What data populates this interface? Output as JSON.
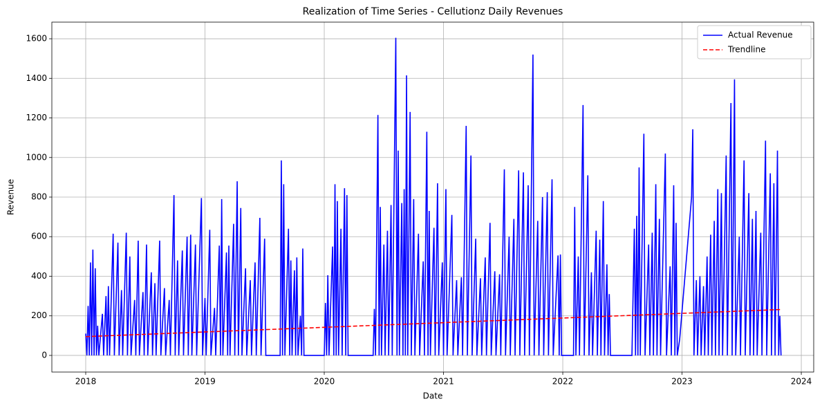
{
  "chart_data": {
    "type": "line",
    "title": "Realization of Time Series - Cellutionz Daily Revenues",
    "x_label": "Date",
    "y_label": "Revenue",
    "xlim": [
      2017.716,
      2024.104
    ],
    "xticks": [
      2018,
      2019,
      2020,
      2021,
      2022,
      2023,
      2024
    ],
    "ylim": [
      -84,
      1684
    ],
    "yticks": [
      0,
      200,
      400,
      600,
      800,
      1000,
      1200,
      1400,
      1600
    ],
    "grid": true,
    "legend": "upper right",
    "series": [
      {
        "name": "Actual Revenue",
        "color": "#0000ff",
        "linestyle": "solid",
        "x": [
          2018.0,
          2018.01,
          2018.02,
          2018.03,
          2018.04,
          2018.05,
          2018.06,
          2018.07,
          2018.08,
          2018.09,
          2018.1,
          2018.11,
          2018.14,
          2018.15,
          2018.17,
          2018.18,
          2018.19,
          2018.2,
          2018.23,
          2018.24,
          2018.27,
          2018.28,
          2018.3,
          2018.31,
          2018.34,
          2018.35,
          2018.37,
          2018.38,
          2018.41,
          2018.42,
          2018.44,
          2018.45,
          2018.48,
          2018.49,
          2018.51,
          2018.52,
          2018.55,
          2018.56,
          2018.58,
          2018.59,
          2018.62,
          2018.63,
          2018.66,
          2018.67,
          2018.7,
          2018.71,
          2018.74,
          2018.75,
          2018.77,
          2018.78,
          2018.81,
          2018.82,
          2018.85,
          2018.86,
          2018.88,
          2018.89,
          2018.92,
          2018.93,
          2018.97,
          2018.98,
          2019.0,
          2019.01,
          2019.04,
          2019.05,
          2019.08,
          2019.09,
          2019.12,
          2019.13,
          2019.14,
          2019.15,
          2019.18,
          2019.19,
          2019.2,
          2019.21,
          2019.24,
          2019.25,
          2019.27,
          2019.28,
          2019.3,
          2019.31,
          2019.34,
          2019.35,
          2019.38,
          2019.39,
          2019.42,
          2019.43,
          2019.46,
          2019.47,
          2019.5,
          2019.51,
          2019.63,
          2019.64,
          2019.65,
          2019.66,
          2019.67,
          2019.7,
          2019.71,
          2019.72,
          2019.73,
          2019.75,
          2019.76,
          2019.77,
          2019.78,
          2019.8,
          2019.81,
          2019.82,
          2019.83,
          2020.0,
          2020.01,
          2020.02,
          2020.03,
          2020.04,
          2020.07,
          2020.08,
          2020.09,
          2020.1,
          2020.11,
          2020.12,
          2020.14,
          2020.15,
          2020.17,
          2020.18,
          2020.19,
          2020.2,
          2020.41,
          2020.42,
          2020.43,
          2020.45,
          2020.46,
          2020.47,
          2020.48,
          2020.5,
          2020.51,
          2020.53,
          2020.54,
          2020.56,
          2020.57,
          2020.6,
          2020.61,
          2020.62,
          2020.63,
          2020.65,
          2020.66,
          2020.67,
          2020.68,
          2020.69,
          2020.7,
          2020.72,
          2020.73,
          2020.75,
          2020.76,
          2020.79,
          2020.8,
          2020.83,
          2020.84,
          2020.86,
          2020.87,
          2020.88,
          2020.89,
          2020.92,
          2020.93,
          2020.95,
          2020.96,
          2020.99,
          2021.0,
          2021.02,
          2021.03,
          2021.07,
          2021.08,
          2021.11,
          2021.12,
          2021.15,
          2021.16,
          2021.19,
          2021.2,
          2021.23,
          2021.24,
          2021.27,
          2021.28,
          2021.31,
          2021.32,
          2021.35,
          2021.36,
          2021.39,
          2021.4,
          2021.43,
          2021.44,
          2021.47,
          2021.48,
          2021.51,
          2021.52,
          2021.55,
          2021.56,
          2021.59,
          2021.6,
          2021.63,
          2021.64,
          2021.67,
          2021.68,
          2021.71,
          2021.72,
          2021.75,
          2021.76,
          2021.79,
          2021.8,
          2021.83,
          2021.84,
          2021.87,
          2021.88,
          2021.91,
          2021.92,
          2021.96,
          2021.97,
          2021.98,
          2021.99,
          2022.09,
          2022.1,
          2022.11,
          2022.13,
          2022.14,
          2022.17,
          2022.18,
          2022.21,
          2022.22,
          2022.24,
          2022.25,
          2022.28,
          2022.29,
          2022.31,
          2022.32,
          2022.34,
          2022.35,
          2022.37,
          2022.38,
          2022.39,
          2022.4,
          2022.58,
          2022.6,
          2022.61,
          2022.62,
          2022.63,
          2022.64,
          2022.65,
          2022.68,
          2022.69,
          2022.72,
          2022.73,
          2022.75,
          2022.76,
          2022.78,
          2022.79,
          2022.81,
          2022.82,
          2022.86,
          2022.87,
          2022.9,
          2022.91,
          2022.93,
          2022.94,
          2022.95,
          2022.96,
          2022.98,
          2023.08,
          2023.09,
          2023.1,
          2023.12,
          2023.13,
          2023.15,
          2023.16,
          2023.18,
          2023.19,
          2023.21,
          2023.22,
          2023.24,
          2023.25,
          2023.27,
          2023.28,
          2023.3,
          2023.31,
          2023.33,
          2023.34,
          2023.37,
          2023.38,
          2023.41,
          2023.42,
          2023.44,
          2023.45,
          2023.48,
          2023.49,
          2023.52,
          2023.53,
          2023.56,
          2023.57,
          2023.59,
          2023.6,
          2023.62,
          2023.63,
          2023.66,
          2023.67,
          2023.7,
          2023.71,
          2023.74,
          2023.75,
          2023.77,
          2023.78,
          2023.8,
          2023.81,
          2023.82,
          2023.83
        ],
        "values": [
          110,
          0,
          250,
          0,
          470,
          0,
          535,
          0,
          440,
          0,
          150,
          0,
          210,
          0,
          300,
          0,
          350,
          0,
          615,
          0,
          570,
          0,
          330,
          0,
          620,
          0,
          500,
          0,
          280,
          0,
          580,
          0,
          320,
          0,
          560,
          0,
          420,
          0,
          365,
          0,
          580,
          0,
          340,
          0,
          280,
          0,
          810,
          0,
          480,
          0,
          530,
          0,
          600,
          0,
          610,
          0,
          560,
          0,
          795,
          0,
          290,
          0,
          635,
          0,
          240,
          0,
          555,
          0,
          790,
          0,
          520,
          0,
          555,
          0,
          665,
          0,
          880,
          0,
          745,
          0,
          440,
          0,
          380,
          0,
          470,
          0,
          695,
          0,
          590,
          0,
          0,
          985,
          0,
          865,
          0,
          640,
          0,
          480,
          0,
          430,
          0,
          495,
          0,
          200,
          0,
          540,
          0,
          0,
          265,
          0,
          405,
          0,
          550,
          0,
          865,
          0,
          780,
          0,
          640,
          0,
          845,
          0,
          810,
          0,
          0,
          235,
          0,
          1215,
          0,
          750,
          0,
          560,
          0,
          630,
          0,
          760,
          0,
          1605,
          0,
          1035,
          0,
          770,
          0,
          840,
          0,
          1415,
          0,
          1230,
          0,
          790,
          0,
          615,
          0,
          475,
          0,
          1130,
          0,
          730,
          0,
          645,
          0,
          870,
          0,
          470,
          0,
          840,
          0,
          710,
          0,
          380,
          0,
          395,
          0,
          1160,
          0,
          1010,
          0,
          590,
          0,
          390,
          0,
          495,
          0,
          670,
          0,
          425,
          0,
          410,
          0,
          940,
          0,
          600,
          0,
          690,
          0,
          935,
          0,
          925,
          0,
          860,
          0,
          1520,
          0,
          680,
          0,
          800,
          0,
          825,
          0,
          890,
          0,
          505,
          0,
          510,
          0,
          0,
          750,
          0,
          500,
          0,
          1265,
          0,
          910,
          0,
          420,
          0,
          630,
          0,
          585,
          0,
          780,
          0,
          460,
          0,
          310,
          0,
          0,
          640,
          0,
          705,
          0,
          950,
          0,
          1120,
          0,
          560,
          0,
          620,
          0,
          865,
          0,
          690,
          0,
          1020,
          0,
          450,
          0,
          860,
          0,
          670,
          0,
          80,
          800,
          1143,
          0,
          380,
          0,
          400,
          0,
          350,
          0,
          500,
          0,
          610,
          0,
          680,
          0,
          840,
          0,
          820,
          0,
          1010,
          0,
          1275,
          0,
          1395,
          0,
          600,
          0,
          985,
          0,
          820,
          0,
          690,
          0,
          730,
          0,
          620,
          0,
          1085,
          0,
          920,
          0,
          870,
          0,
          1035,
          0,
          200,
          0
        ]
      },
      {
        "name": "Trendline",
        "color": "#ff0000",
        "linestyle": "dashed",
        "x": [
          2018.0,
          2023.83
        ],
        "values": [
          95,
          232
        ]
      }
    ]
  }
}
